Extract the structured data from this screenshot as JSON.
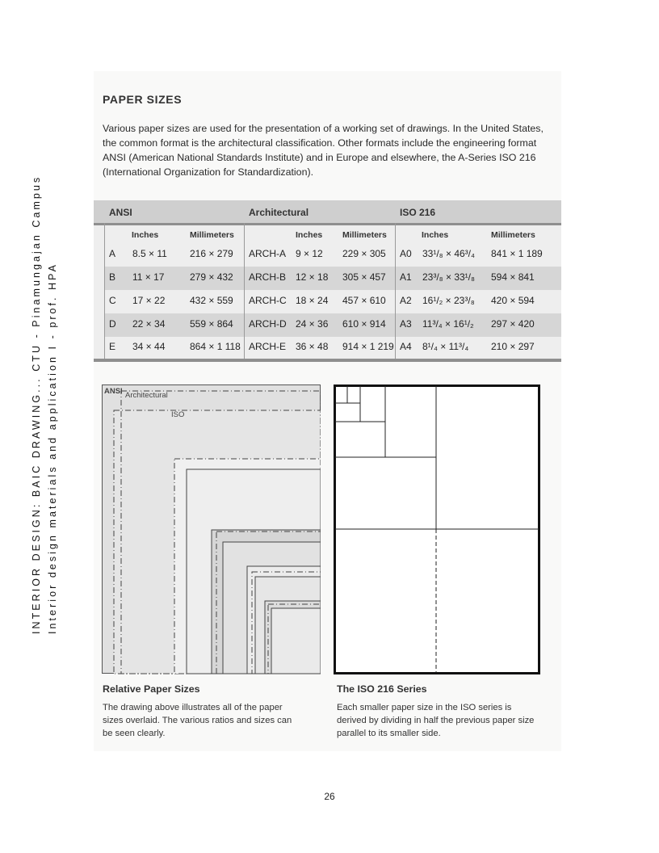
{
  "side": {
    "title": "INTERIOR DESIGN: BAIC DRAWING... CTU - Pinamungajan Campus",
    "subtitle": "Interior design materials and application I - prof. HPA"
  },
  "section": {
    "heading": "PAPER SIZES",
    "intro": "Various paper sizes are used for the presentation of a working set of drawings. In the United States, the common format is the architectural classification. Other formats include the engineering format ANSI (American National Standards Institute) and in Europe and elsewhere, the A-Series ISO 216 (International Organization for Standardization)."
  },
  "table": {
    "groups": [
      "ANSI",
      "Architectural",
      "ISO 216"
    ],
    "col_inches": "Inches",
    "col_mm": "Millimeters",
    "rows": [
      {
        "ansi": "A",
        "ansi_in": "8.5 × 11",
        "ansi_mm": "216 × 279",
        "arch": "ARCH-A",
        "arch_in": "9 × 12",
        "arch_mm": "229 × 305",
        "iso": "A0",
        "iso_in": "33¹/₈ × 46³/₄",
        "iso_mm": "841 × 1 189"
      },
      {
        "ansi": "B",
        "ansi_in": "11 × 17",
        "ansi_mm": "279 × 432",
        "arch": "ARCH-B",
        "arch_in": "12 × 18",
        "arch_mm": "305 × 457",
        "iso": "A1",
        "iso_in": "23³/₈ × 33¹/₈",
        "iso_mm": "594 × 841"
      },
      {
        "ansi": "C",
        "ansi_in": "17 × 22",
        "ansi_mm": "432 × 559",
        "arch": "ARCH-C",
        "arch_in": "18 × 24",
        "arch_mm": "457 × 610",
        "iso": "A2",
        "iso_in": "16¹/₂ × 23³/₈",
        "iso_mm": "420 × 594"
      },
      {
        "ansi": "D",
        "ansi_in": "22 × 34",
        "ansi_mm": "559 × 864",
        "arch": "ARCH-D",
        "arch_in": "24 × 36",
        "arch_mm": "610 × 914",
        "iso": "A3",
        "iso_in": "11³/₄ × 16¹/₂",
        "iso_mm": "297 × 420"
      },
      {
        "ansi": "E",
        "ansi_in": "34 × 44",
        "ansi_mm": "864 × 1 118",
        "arch": "ARCH-E",
        "arch_in": "36 × 48",
        "arch_mm": "914 × 1 219",
        "iso": "A4",
        "iso_in": "8¹/₄ × 11³/₄",
        "iso_mm": "210 × 297"
      }
    ]
  },
  "figures": {
    "relative": {
      "label_ansi": "ANSI",
      "label_arch": "Architectural",
      "label_iso": "ISO",
      "caption_title": "Relative Paper Sizes",
      "caption_text": "The drawing above illustrates all of the paper sizes overlaid. The various ratios and sizes can be seen clearly."
    },
    "iso": {
      "caption_title": "The ISO 216 Series",
      "caption_text": "Each smaller paper size in the ISO series is derived by dividing in half the previous paper size parallel to its smaller side."
    }
  },
  "page_number": "26"
}
